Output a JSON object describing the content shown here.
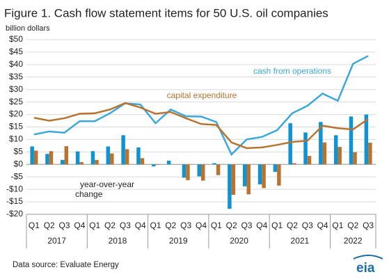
{
  "chart_data": {
    "type": "bar-line",
    "title": "Figure 1. Cash flow statement items for 50 U.S. oil companies",
    "y_label": "billion dollars",
    "source": "Data source: Evaluate Energy",
    "logo": "eia",
    "categories": [
      "Q1",
      "Q2",
      "Q3",
      "Q4",
      "Q1",
      "Q2",
      "Q3",
      "Q4",
      "Q1",
      "Q2",
      "Q3",
      "Q4",
      "Q1",
      "Q2",
      "Q3",
      "Q4",
      "Q1",
      "Q2",
      "Q3",
      "Q4",
      "Q1",
      "Q2",
      "Q3"
    ],
    "years": [
      "2017",
      "2018",
      "2019",
      "2020",
      "2021",
      "2022"
    ],
    "ylim": [
      -20,
      50
    ],
    "yticks": [
      {
        "value": -20,
        "label": "-$20"
      },
      {
        "value": -15,
        "label": "-$15"
      },
      {
        "value": -10,
        "label": "-$10"
      },
      {
        "value": -5,
        "label": "-$5"
      },
      {
        "value": 0,
        "label": "$0"
      },
      {
        "value": 5,
        "label": "$5"
      },
      {
        "value": 10,
        "label": "$10"
      },
      {
        "value": 15,
        "label": "$15"
      },
      {
        "value": 20,
        "label": "$20"
      },
      {
        "value": 25,
        "label": "$25"
      },
      {
        "value": 30,
        "label": "$30"
      },
      {
        "value": 35,
        "label": "$35"
      },
      {
        "value": 40,
        "label": "$40"
      },
      {
        "value": 45,
        "label": "$45"
      },
      {
        "value": 50,
        "label": "$50"
      }
    ],
    "grid": true,
    "bar_annotation": [
      "year-over-year",
      "change"
    ],
    "series": [
      {
        "type": "line",
        "name": "cash from operations",
        "color": "#3aa8dc",
        "values": [
          12,
          13.2,
          12.7,
          17.3,
          17.3,
          20.5,
          24.5,
          24,
          16.5,
          22,
          19.3,
          19.2,
          17,
          4,
          10,
          11,
          13.7,
          20.5,
          23.5,
          28.4,
          25.5,
          40.3,
          43.5
        ]
      },
      {
        "type": "line",
        "name": "capital expenditure",
        "color": "#b8732e",
        "values": [
          18.7,
          17.5,
          18.5,
          20.3,
          20.5,
          22,
          24.6,
          22.8,
          20.3,
          21,
          18.5,
          16.2,
          15.8,
          8.8,
          6.5,
          6.8,
          7.8,
          9,
          9.5,
          15.5,
          14.5,
          14,
          18.2
        ]
      },
      {
        "type": "bar",
        "color": "#0f93d2",
        "values": [
          7.2,
          4.2,
          1.8,
          5.2,
          5.3,
          7.2,
          11.7,
          6.8,
          -0.8,
          1.5,
          -5.3,
          -4.8,
          0.5,
          -17.8,
          -8.8,
          -8,
          -3,
          16.5,
          12.8,
          17,
          11.7,
          19.2,
          20
        ]
      },
      {
        "type": "bar",
        "color": "#b8732e",
        "values": [
          5.5,
          5.3,
          7.3,
          0.9,
          1.8,
          4.4,
          6.1,
          2.5,
          -0.2,
          0,
          -6.3,
          -6.5,
          -4.3,
          -12.2,
          -12,
          -9.5,
          -8.5,
          0.5,
          3.4,
          8.8,
          7,
          4.9,
          8.7
        ]
      }
    ]
  }
}
